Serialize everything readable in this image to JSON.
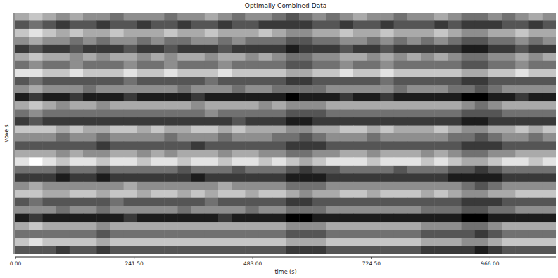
{
  "chart_data": {
    "type": "heatmap",
    "title": "Optimally Combined Data",
    "x_label": "time (s)",
    "y_label": "voxels",
    "xlim": [
      0,
      1100
    ],
    "xticks": [
      {
        "value": 0,
        "label": "0.00"
      },
      {
        "value": 241.5,
        "label": "241.50"
      },
      {
        "value": 483,
        "label": "483.00"
      },
      {
        "value": 724.5,
        "label": "724.50"
      },
      {
        "value": 966,
        "label": "966.00"
      }
    ],
    "tick_labels": "x",
    "color": "gray",
    "zlim": [
      0,
      9
    ],
    "cells": [
      [
        6,
        7,
        6,
        5,
        6,
        5,
        5,
        4,
        5,
        5,
        5,
        4,
        5,
        5,
        6,
        5,
        4,
        5,
        5,
        4,
        3,
        4,
        5,
        4,
        5,
        6,
        5,
        5,
        4,
        5,
        5,
        6,
        5,
        4,
        4,
        5,
        4,
        5,
        6,
        5
      ],
      [
        3,
        4,
        3,
        2,
        3,
        3,
        2,
        3,
        3,
        2,
        3,
        3,
        2,
        3,
        3,
        2,
        3,
        3,
        2,
        2,
        2,
        2,
        3,
        3,
        2,
        3,
        3,
        2,
        3,
        3,
        3,
        2,
        3,
        2,
        2,
        2,
        3,
        3,
        2,
        3
      ],
      [
        7,
        8,
        7,
        6,
        7,
        6,
        6,
        7,
        6,
        6,
        6,
        7,
        6,
        6,
        7,
        6,
        6,
        6,
        7,
        6,
        5,
        5,
        6,
        6,
        7,
        6,
        6,
        7,
        6,
        6,
        6,
        7,
        6,
        5,
        5,
        6,
        6,
        7,
        6,
        6
      ],
      [
        5,
        6,
        5,
        5,
        4,
        5,
        4,
        5,
        5,
        4,
        5,
        4,
        4,
        5,
        5,
        4,
        5,
        4,
        4,
        4,
        3,
        3,
        4,
        4,
        5,
        5,
        4,
        5,
        4,
        5,
        4,
        5,
        4,
        3,
        3,
        4,
        4,
        5,
        4,
        5
      ],
      [
        2,
        3,
        2,
        2,
        3,
        2,
        2,
        2,
        3,
        2,
        2,
        3,
        2,
        2,
        2,
        3,
        2,
        2,
        2,
        2,
        1,
        2,
        2,
        2,
        3,
        2,
        2,
        3,
        2,
        2,
        2,
        2,
        2,
        1,
        1,
        2,
        2,
        3,
        2,
        2
      ],
      [
        6,
        7,
        6,
        6,
        5,
        6,
        5,
        6,
        6,
        5,
        6,
        5,
        6,
        6,
        5,
        6,
        6,
        5,
        6,
        5,
        4,
        4,
        5,
        5,
        6,
        6,
        5,
        6,
        5,
        6,
        5,
        6,
        5,
        4,
        4,
        5,
        5,
        6,
        5,
        6
      ],
      [
        4,
        5,
        4,
        4,
        5,
        4,
        4,
        4,
        5,
        4,
        4,
        5,
        4,
        4,
        4,
        5,
        4,
        4,
        4,
        4,
        3,
        3,
        4,
        4,
        5,
        4,
        4,
        5,
        4,
        4,
        4,
        4,
        4,
        3,
        3,
        4,
        4,
        5,
        4,
        4
      ],
      [
        8,
        8,
        7,
        7,
        8,
        7,
        7,
        7,
        8,
        7,
        7,
        8,
        7,
        7,
        7,
        8,
        7,
        7,
        7,
        7,
        6,
        6,
        7,
        7,
        8,
        7,
        7,
        8,
        7,
        7,
        7,
        7,
        7,
        6,
        6,
        7,
        7,
        8,
        7,
        7
      ],
      [
        3,
        4,
        3,
        3,
        3,
        3,
        3,
        3,
        4,
        3,
        3,
        3,
        3,
        3,
        4,
        3,
        3,
        3,
        3,
        3,
        2,
        2,
        3,
        3,
        3,
        3,
        3,
        4,
        3,
        3,
        3,
        3,
        3,
        2,
        2,
        3,
        3,
        3,
        3,
        3
      ],
      [
        5,
        6,
        5,
        5,
        5,
        4,
        5,
        5,
        5,
        5,
        5,
        5,
        4,
        5,
        5,
        5,
        4,
        5,
        5,
        4,
        4,
        4,
        4,
        5,
        5,
        5,
        5,
        5,
        4,
        5,
        5,
        5,
        4,
        4,
        3,
        4,
        5,
        5,
        5,
        5
      ],
      [
        1,
        2,
        1,
        1,
        2,
        1,
        1,
        1,
        2,
        1,
        1,
        1,
        1,
        2,
        1,
        1,
        1,
        1,
        1,
        1,
        0,
        1,
        1,
        1,
        2,
        1,
        1,
        2,
        1,
        1,
        1,
        1,
        1,
        0,
        0,
        1,
        1,
        2,
        1,
        1
      ],
      [
        6,
        7,
        6,
        5,
        6,
        6,
        5,
        6,
        6,
        6,
        6,
        6,
        6,
        5,
        6,
        6,
        6,
        6,
        5,
        6,
        5,
        5,
        5,
        6,
        6,
        6,
        6,
        6,
        6,
        6,
        6,
        6,
        6,
        5,
        4,
        5,
        6,
        6,
        6,
        6
      ],
      [
        4,
        5,
        4,
        4,
        4,
        4,
        4,
        4,
        4,
        4,
        4,
        4,
        4,
        4,
        5,
        4,
        4,
        4,
        4,
        4,
        3,
        3,
        3,
        4,
        4,
        4,
        4,
        4,
        4,
        4,
        4,
        4,
        4,
        3,
        3,
        3,
        4,
        4,
        4,
        4
      ],
      [
        2,
        3,
        2,
        2,
        2,
        2,
        2,
        2,
        2,
        2,
        2,
        2,
        2,
        2,
        2,
        2,
        3,
        2,
        2,
        2,
        1,
        1,
        2,
        2,
        2,
        2,
        2,
        2,
        2,
        2,
        2,
        2,
        2,
        1,
        1,
        2,
        2,
        2,
        2,
        2
      ],
      [
        7,
        7,
        7,
        6,
        7,
        6,
        6,
        7,
        7,
        6,
        7,
        6,
        6,
        7,
        7,
        6,
        7,
        6,
        6,
        6,
        5,
        5,
        6,
        6,
        7,
        7,
        6,
        7,
        6,
        6,
        6,
        7,
        6,
        5,
        5,
        6,
        6,
        7,
        6,
        7
      ],
      [
        5,
        5,
        5,
        4,
        5,
        5,
        4,
        5,
        5,
        5,
        5,
        4,
        5,
        5,
        5,
        4,
        5,
        5,
        5,
        4,
        4,
        3,
        4,
        5,
        5,
        5,
        4,
        5,
        5,
        5,
        5,
        5,
        4,
        4,
        3,
        4,
        5,
        5,
        4,
        5
      ],
      [
        3,
        3,
        3,
        3,
        3,
        3,
        2,
        3,
        3,
        3,
        3,
        3,
        3,
        2,
        3,
        3,
        3,
        3,
        3,
        3,
        2,
        2,
        2,
        3,
        3,
        3,
        3,
        3,
        3,
        3,
        3,
        3,
        3,
        2,
        2,
        2,
        3,
        3,
        3,
        3
      ],
      [
        6,
        6,
        6,
        5,
        6,
        5,
        5,
        6,
        6,
        5,
        6,
        5,
        6,
        6,
        6,
        5,
        6,
        6,
        5,
        5,
        4,
        4,
        5,
        5,
        6,
        6,
        5,
        6,
        6,
        6,
        5,
        6,
        5,
        4,
        4,
        5,
        5,
        6,
        6,
        6
      ],
      [
        8,
        9,
        8,
        7,
        8,
        8,
        7,
        8,
        8,
        7,
        8,
        8,
        7,
        8,
        8,
        7,
        8,
        8,
        7,
        8,
        7,
        6,
        7,
        8,
        8,
        8,
        7,
        8,
        8,
        8,
        7,
        8,
        7,
        6,
        6,
        7,
        8,
        8,
        7,
        8
      ],
      [
        4,
        4,
        4,
        3,
        4,
        4,
        3,
        4,
        4,
        4,
        4,
        4,
        3,
        4,
        4,
        4,
        3,
        4,
        4,
        4,
        3,
        2,
        3,
        3,
        4,
        4,
        4,
        4,
        3,
        4,
        4,
        4,
        3,
        3,
        2,
        3,
        4,
        4,
        4,
        4
      ],
      [
        2,
        2,
        2,
        1,
        2,
        2,
        1,
        2,
        2,
        2,
        2,
        2,
        2,
        1,
        2,
        2,
        2,
        2,
        2,
        2,
        1,
        1,
        1,
        2,
        2,
        2,
        2,
        2,
        2,
        2,
        2,
        2,
        1,
        1,
        1,
        1,
        2,
        2,
        2,
        2
      ],
      [
        5,
        6,
        5,
        5,
        5,
        5,
        5,
        5,
        6,
        5,
        5,
        5,
        5,
        5,
        5,
        6,
        5,
        5,
        5,
        5,
        4,
        4,
        4,
        5,
        5,
        5,
        5,
        5,
        5,
        5,
        5,
        5,
        5,
        4,
        3,
        4,
        5,
        5,
        5,
        5
      ],
      [
        7,
        7,
        6,
        6,
        7,
        7,
        6,
        7,
        7,
        6,
        7,
        7,
        6,
        7,
        6,
        7,
        7,
        6,
        7,
        7,
        6,
        5,
        6,
        6,
        7,
        7,
        6,
        7,
        7,
        7,
        6,
        7,
        6,
        5,
        5,
        6,
        6,
        7,
        7,
        7
      ],
      [
        3,
        4,
        3,
        3,
        3,
        3,
        3,
        4,
        3,
        3,
        3,
        3,
        3,
        3,
        4,
        3,
        3,
        3,
        3,
        3,
        2,
        2,
        3,
        3,
        3,
        3,
        3,
        3,
        3,
        3,
        3,
        3,
        3,
        2,
        2,
        2,
        3,
        3,
        3,
        3
      ],
      [
        5,
        5,
        5,
        4,
        5,
        5,
        4,
        5,
        5,
        5,
        5,
        5,
        4,
        5,
        5,
        5,
        5,
        4,
        5,
        5,
        4,
        4,
        4,
        5,
        5,
        5,
        5,
        5,
        5,
        5,
        4,
        4,
        4,
        3,
        3,
        4,
        4,
        5,
        5,
        5
      ],
      [
        1,
        2,
        1,
        1,
        1,
        1,
        1,
        1,
        2,
        1,
        1,
        1,
        1,
        1,
        1,
        2,
        1,
        1,
        1,
        1,
        0,
        0,
        1,
        1,
        1,
        1,
        1,
        1,
        1,
        1,
        1,
        1,
        1,
        0,
        0,
        1,
        1,
        1,
        1,
        1
      ],
      [
        6,
        7,
        6,
        6,
        6,
        6,
        5,
        6,
        6,
        6,
        6,
        6,
        6,
        6,
        6,
        6,
        6,
        6,
        6,
        6,
        5,
        5,
        5,
        6,
        6,
        6,
        6,
        6,
        6,
        6,
        5,
        5,
        5,
        4,
        4,
        5,
        6,
        6,
        6,
        6
      ],
      [
        4,
        4,
        4,
        4,
        4,
        4,
        3,
        4,
        4,
        4,
        4,
        4,
        4,
        4,
        4,
        4,
        4,
        4,
        4,
        4,
        3,
        3,
        3,
        4,
        4,
        4,
        4,
        4,
        4,
        4,
        3,
        3,
        3,
        3,
        2,
        3,
        4,
        4,
        4,
        4
      ],
      [
        7,
        8,
        7,
        7,
        7,
        7,
        6,
        7,
        7,
        7,
        7,
        7,
        7,
        7,
        7,
        7,
        7,
        7,
        7,
        7,
        6,
        6,
        6,
        7,
        7,
        7,
        7,
        7,
        7,
        7,
        6,
        6,
        6,
        5,
        5,
        6,
        7,
        7,
        7,
        7
      ],
      [
        3,
        3,
        3,
        2,
        3,
        3,
        2,
        3,
        3,
        3,
        3,
        3,
        3,
        3,
        3,
        3,
        3,
        3,
        3,
        3,
        2,
        2,
        2,
        3,
        3,
        3,
        3,
        3,
        3,
        3,
        2,
        2,
        2,
        2,
        1,
        2,
        3,
        3,
        3,
        3
      ]
    ]
  }
}
